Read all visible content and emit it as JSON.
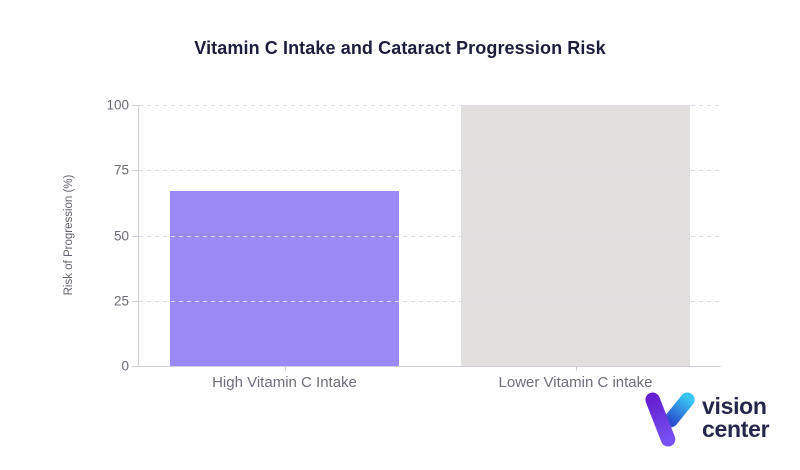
{
  "page": {
    "background": "#ffffff"
  },
  "chart_data": {
    "type": "bar",
    "title": "Vitamin C Intake and Cataract Progression Risk",
    "categories": [
      "High Vitamin C Intake",
      "Lower Vitamin C intake"
    ],
    "values": [
      67,
      100
    ],
    "xlabel": "",
    "ylabel": "Risk of Progression (%)",
    "ylim": [
      0,
      100
    ],
    "yticks": [
      0,
      25,
      50,
      75,
      100
    ],
    "ytick_labels": [
      "0",
      "25",
      "50",
      "75",
      "100"
    ],
    "grid": "horizontal-dashed",
    "legend": "none",
    "bar_colors": [
      "#9b8af5",
      "#e1e0de"
    ],
    "colors": {
      "title_text": "#1d1d3e",
      "axis_line": "#cfcfda",
      "gridline": "#dadae8",
      "tick_text": "#6b6b78",
      "category_text": "#6e6e7c"
    }
  },
  "branding": {
    "logo_icon": "vision-center-v-icon",
    "logo_line1": "vision",
    "logo_line2": "center",
    "text_color": "#26274d",
    "icon_purple_top": "#6620cf",
    "icon_purple_bottom": "#7550f2",
    "icon_blue_top": "#38c6f4",
    "icon_blue_bottom": "#2b50cf"
  }
}
